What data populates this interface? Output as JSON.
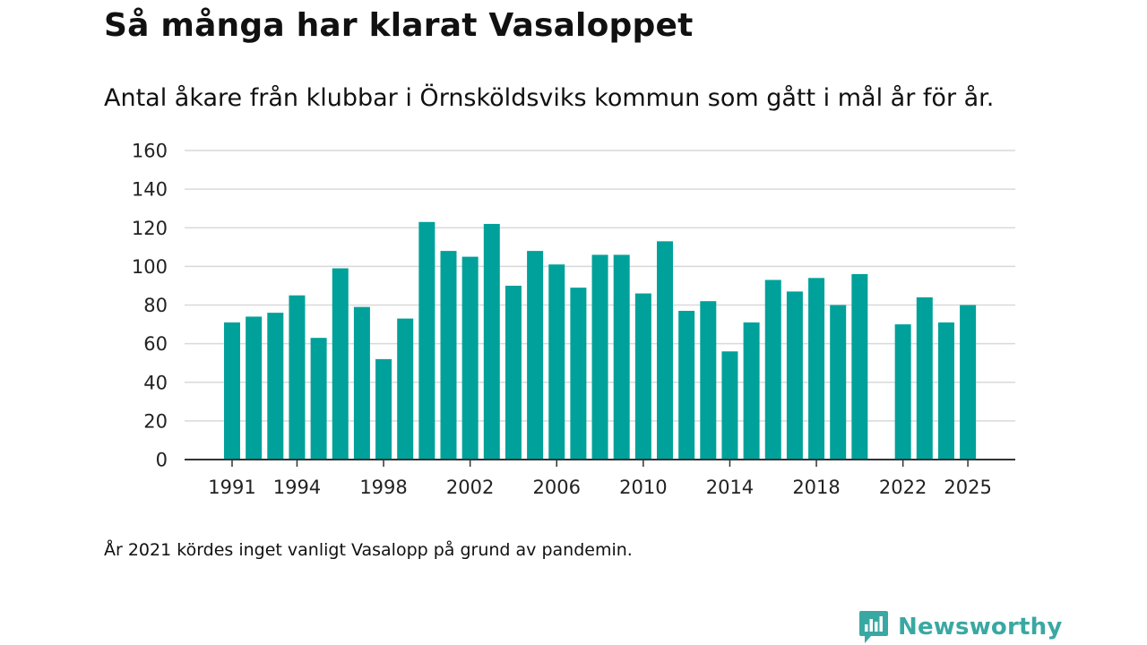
{
  "header": {
    "title": "Så många har klarat Vasaloppet",
    "subtitle": "Antal åkare från klubbar i Örnsköldsviks kommun som gått i mål år för år."
  },
  "footer": {
    "note": "År 2021 kördes inget vanligt Vasalopp på grund av pandemin.",
    "brand": "Newsworthy"
  },
  "colors": {
    "bar": "#00a19a",
    "grid": "#d9d9d9",
    "axis": "#333333",
    "brand": "#3aa8a2"
  },
  "chart_data": {
    "type": "bar",
    "title": "Så många har klarat Vasaloppet",
    "subtitle": "Antal åkare från klubbar i Örnsköldsviks kommun som gått i mål år för år.",
    "xlabel": "",
    "ylabel": "",
    "ylim": [
      0,
      160
    ],
    "yticks": [
      0,
      20,
      40,
      60,
      80,
      100,
      120,
      140,
      160
    ],
    "xticks": [
      1991,
      1994,
      1998,
      2002,
      2006,
      2010,
      2014,
      2018,
      2022,
      2025
    ],
    "grid": true,
    "categories": [
      1991,
      1992,
      1993,
      1994,
      1995,
      1996,
      1997,
      1998,
      1999,
      2000,
      2001,
      2002,
      2003,
      2004,
      2005,
      2006,
      2007,
      2008,
      2009,
      2010,
      2011,
      2012,
      2013,
      2014,
      2015,
      2016,
      2017,
      2018,
      2019,
      2020,
      2021,
      2022,
      2023,
      2024,
      2025
    ],
    "values": [
      71,
      74,
      76,
      85,
      63,
      99,
      79,
      52,
      73,
      123,
      108,
      105,
      122,
      90,
      108,
      101,
      89,
      106,
      106,
      86,
      113,
      77,
      82,
      56,
      71,
      93,
      87,
      94,
      80,
      96,
      null,
      70,
      84,
      71,
      80
    ]
  }
}
